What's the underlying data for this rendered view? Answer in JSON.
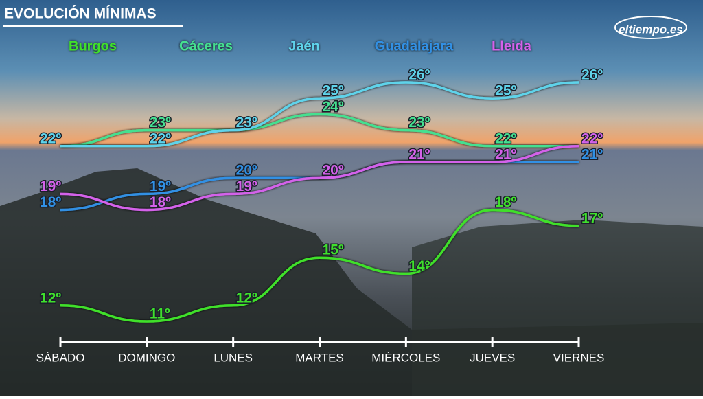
{
  "logo": "eltiempo.es",
  "chart_data": {
    "type": "line",
    "title": "EVOLUCIÓN MÍNIMAS",
    "categories": [
      "SÁBADO",
      "DOMINGO",
      "LUNES",
      "MARTES",
      "MIÉRCOLES",
      "JUEVES",
      "VIERNES"
    ],
    "series": [
      {
        "name": "Burgos",
        "color": "#3fe02c",
        "values": [
          12,
          11,
          12,
          15,
          14,
          18,
          17
        ],
        "value_labels": [
          "12º",
          "11º",
          "12º",
          "15º",
          "14º",
          "18º",
          "17º"
        ]
      },
      {
        "name": "Cáceres",
        "color": "#45e090",
        "values": [
          22,
          23,
          23,
          24,
          23,
          22,
          22
        ],
        "value_labels": [
          null,
          "23º",
          null,
          "24º",
          "23º",
          "22º",
          null
        ]
      },
      {
        "name": "Jaén",
        "color": "#5fd3ea",
        "values": [
          22,
          22,
          23,
          25,
          26,
          25,
          26
        ],
        "value_labels": [
          "22º",
          "22º",
          "23º",
          "25º",
          "26º",
          "25º",
          "26º"
        ]
      },
      {
        "name": "Guadalajara",
        "color": "#3190e4",
        "values": [
          18,
          19,
          20,
          20,
          21,
          21,
          21
        ],
        "value_labels": [
          "18º",
          "19º",
          "20º",
          null,
          null,
          null,
          "21º"
        ]
      },
      {
        "name": "Lleida",
        "color": "#d462ea",
        "values": [
          19,
          18,
          19,
          20,
          21,
          21,
          22
        ],
        "value_labels": [
          "19º",
          "18º",
          "19º",
          "20º",
          "21º",
          "21º",
          "22º"
        ]
      }
    ]
  }
}
